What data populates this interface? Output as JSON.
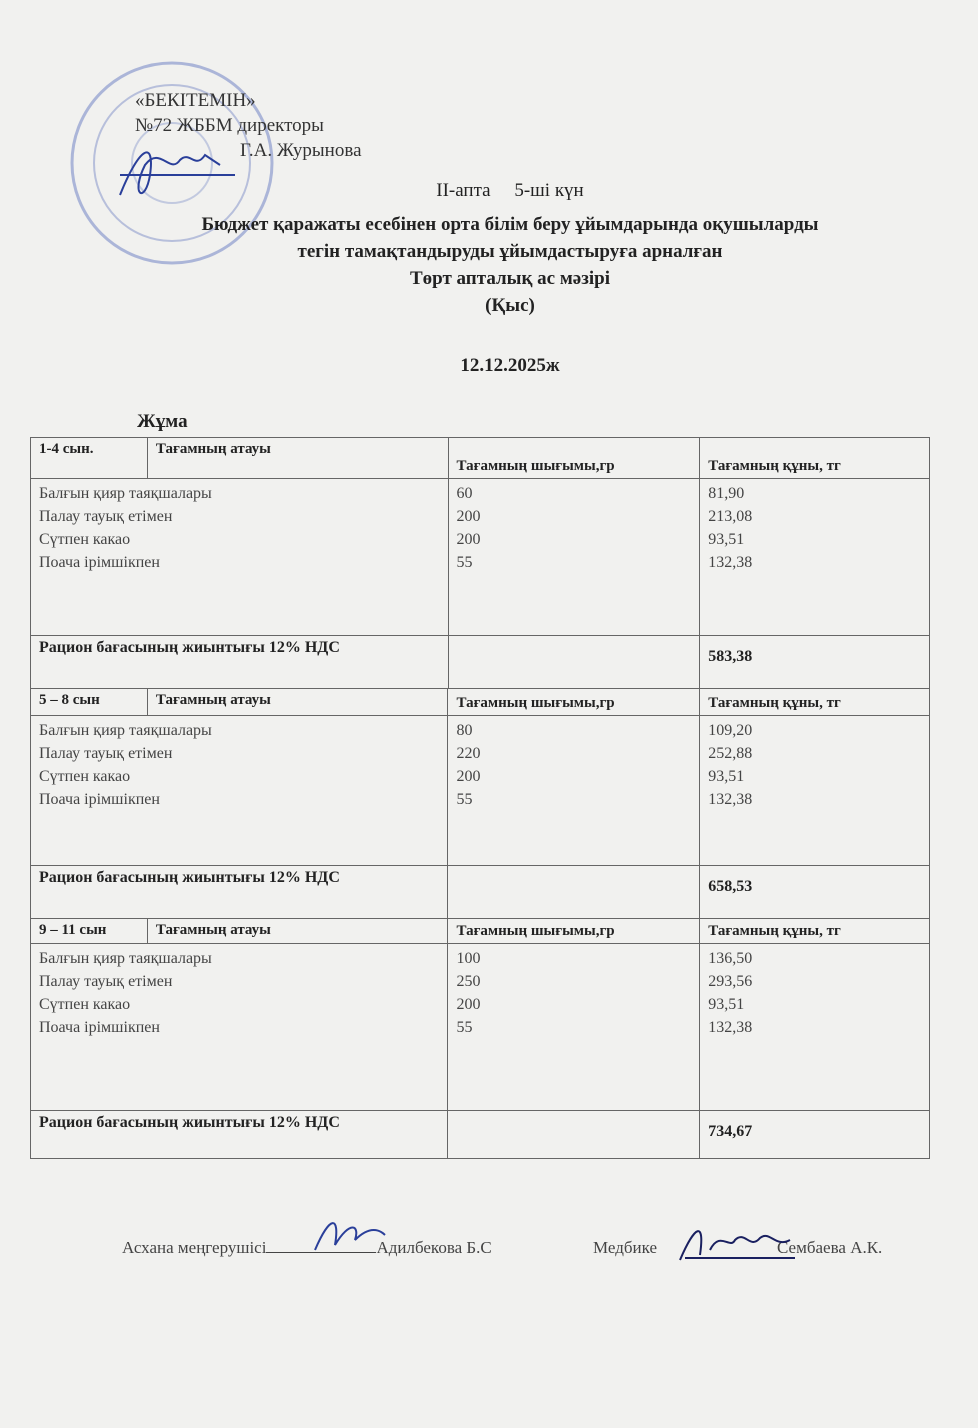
{
  "approval": {
    "title": "«БЕКІТЕМІН»",
    "position": "№72 ЖББМ директоры",
    "name": "Г.А. Журынова"
  },
  "heading": {
    "week": "ІІ-апта",
    "day": "5-ші күн",
    "line1": "Бюджет қаражаты есебінен орта білім беру ұйымдарында оқушыларды",
    "line2": "тегін тамақтандыруды ұйымдастыруға арналған",
    "line3": "Төрт апталық ас мәзірі",
    "season": "(Қыс)",
    "date": "12.12.2025ж",
    "weekday": "Жұма"
  },
  "sections": [
    {
      "grade": "1-4 сын.",
      "col_name": "Тағамның атауы",
      "col_yield": "Тағамның шығымы,гр",
      "col_price": "Тағамның құны, тг",
      "items": [
        {
          "name": "Балғын қияр таяқшалары",
          "yield": "60",
          "price": "81,90"
        },
        {
          "name": "Палау тауық етімен",
          "yield": "200",
          "price": "213,08"
        },
        {
          "name": "Сүтпен какао",
          "yield": "200",
          "price": "93,51"
        },
        {
          "name": "Поача ірімшікпен",
          "yield": "55",
          "price": "132,38"
        }
      ],
      "total_label": "Рацион бағасының жиынтығы 12% НДС",
      "total": "583,38"
    },
    {
      "grade": "5 – 8 сын",
      "col_name": "Тағамның атауы",
      "col_yield": "Тағамның шығымы,гр",
      "col_price": "Тағамның құны, тг",
      "items": [
        {
          "name": "Балғын қияр таяқшалары",
          "yield": "80",
          "price": "109,20"
        },
        {
          "name": "Палау тауық етімен",
          "yield": "220",
          "price": "252,88"
        },
        {
          "name": "Сүтпен какао",
          "yield": "200",
          "price": "93,51"
        },
        {
          "name": "Поача ірімшікпен",
          "yield": "55",
          "price": "132,38"
        }
      ],
      "total_label": "Рацион бағасының жиынтығы 12% НДС",
      "total": "658,53"
    },
    {
      "grade": "9 – 11 сын",
      "col_name": "Тағамның атауы",
      "col_yield": "Тағамның шығымы,гр",
      "col_price": "Тағамның құны, тг",
      "items": [
        {
          "name": "Балғын қияр таяқшалары",
          "yield": "100",
          "price": "136,50"
        },
        {
          "name": "Палау тауық етімен",
          "yield": "250",
          "price": "293,56"
        },
        {
          "name": "Сүтпен какао",
          "yield": "200",
          "price": "93,51"
        },
        {
          "name": "Поача ірімшікпен",
          "yield": "55",
          "price": "132,38"
        }
      ],
      "total_label": "Рацион бағасының жиынтығы 12% НДС",
      "total": "734,67"
    }
  ],
  "footer": {
    "role1": "Асхана меңгерушісі",
    "name1": "Адилбекова Б.С",
    "role2": "Медбике",
    "name2": "Сембаева А.К."
  },
  "colors": {
    "stamp": "#5a6fb8",
    "signature": "#2a3f9a"
  }
}
